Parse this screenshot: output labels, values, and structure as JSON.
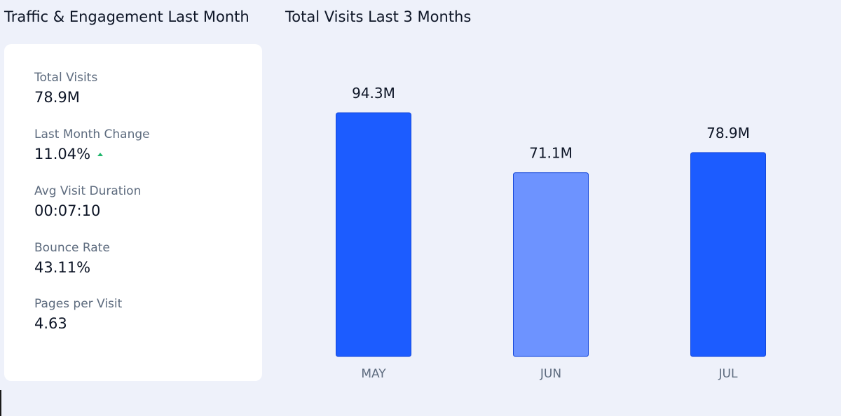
{
  "left_panel": {
    "title": "Traffic & Engagement Last Month",
    "metrics": [
      {
        "label": "Total Visits",
        "value": "78.9M"
      },
      {
        "label": "Last Month Change",
        "value": "11.04%",
        "trend_icon": "triangle-up-icon",
        "trend_color": "#1fb66b"
      },
      {
        "label": "Avg Visit Duration",
        "value": "00:07:10"
      },
      {
        "label": "Bounce Rate",
        "value": "43.11%"
      },
      {
        "label": "Pages per Visit",
        "value": "4.63"
      }
    ]
  },
  "chart_data": {
    "type": "bar",
    "title": "Total Visits Last 3 Months",
    "categories": [
      "MAY",
      "JUN",
      "JUL"
    ],
    "values": [
      94.3,
      71.1,
      78.9
    ],
    "value_labels": [
      "94.3M",
      "71.1M",
      "78.9M"
    ],
    "unit": "M",
    "ylim": [
      0,
      100
    ],
    "grid": false,
    "colors": [
      "#1c5cff",
      "#6d93ff",
      "#1c5cff"
    ],
    "xlabel": "",
    "ylabel": ""
  }
}
